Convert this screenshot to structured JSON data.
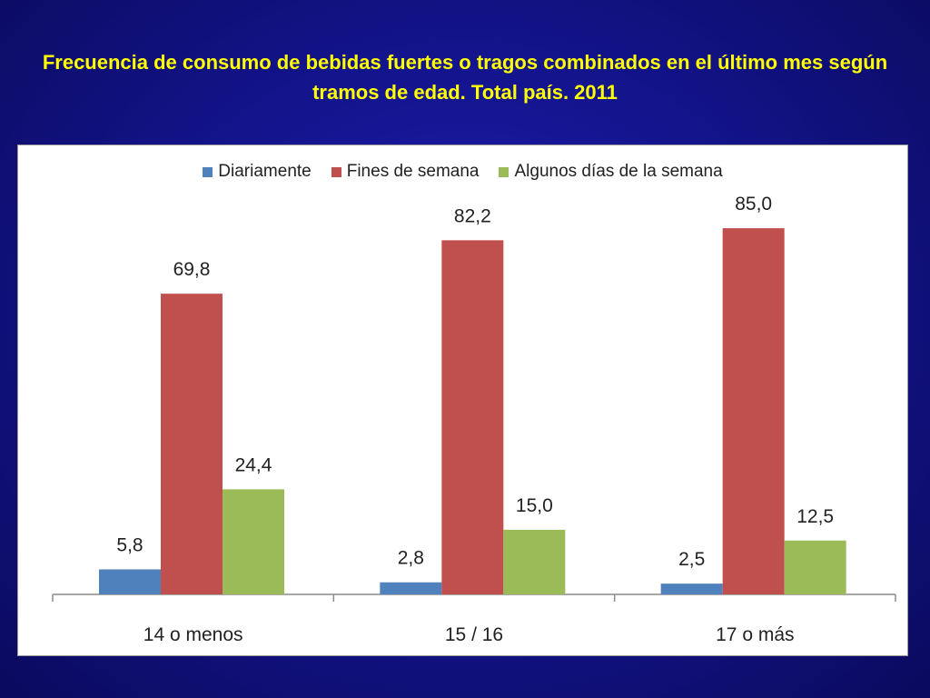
{
  "slide": {
    "title": "Frecuencia de consumo de bebidas fuertes o tragos combinados en el último mes según tramos de edad. Total país. 2011"
  },
  "colors": {
    "background": "#14148e",
    "title": "#ffff00",
    "panel": "#ffffff"
  },
  "chart_data": {
    "type": "bar",
    "categories": [
      "14 o menos",
      "15 / 16",
      "17 o más"
    ],
    "series": [
      {
        "name": "Diariamente",
        "color": "#4f81bd",
        "values": [
          5.8,
          2.8,
          2.5
        ],
        "labels": [
          "5,8",
          "2,8",
          "2,5"
        ]
      },
      {
        "name": "Fines de semana",
        "color": "#c0504d",
        "values": [
          69.8,
          82.2,
          85.0
        ],
        "labels": [
          "69,8",
          "82,2",
          "85,0"
        ]
      },
      {
        "name": "Algunos días de la semana",
        "color": "#9bbb59",
        "values": [
          24.4,
          15.0,
          12.5
        ],
        "labels": [
          "24,4",
          "15,0",
          "12,5"
        ]
      }
    ],
    "ylim": [
      0,
      100
    ],
    "grid": false,
    "legend_position": "top"
  }
}
